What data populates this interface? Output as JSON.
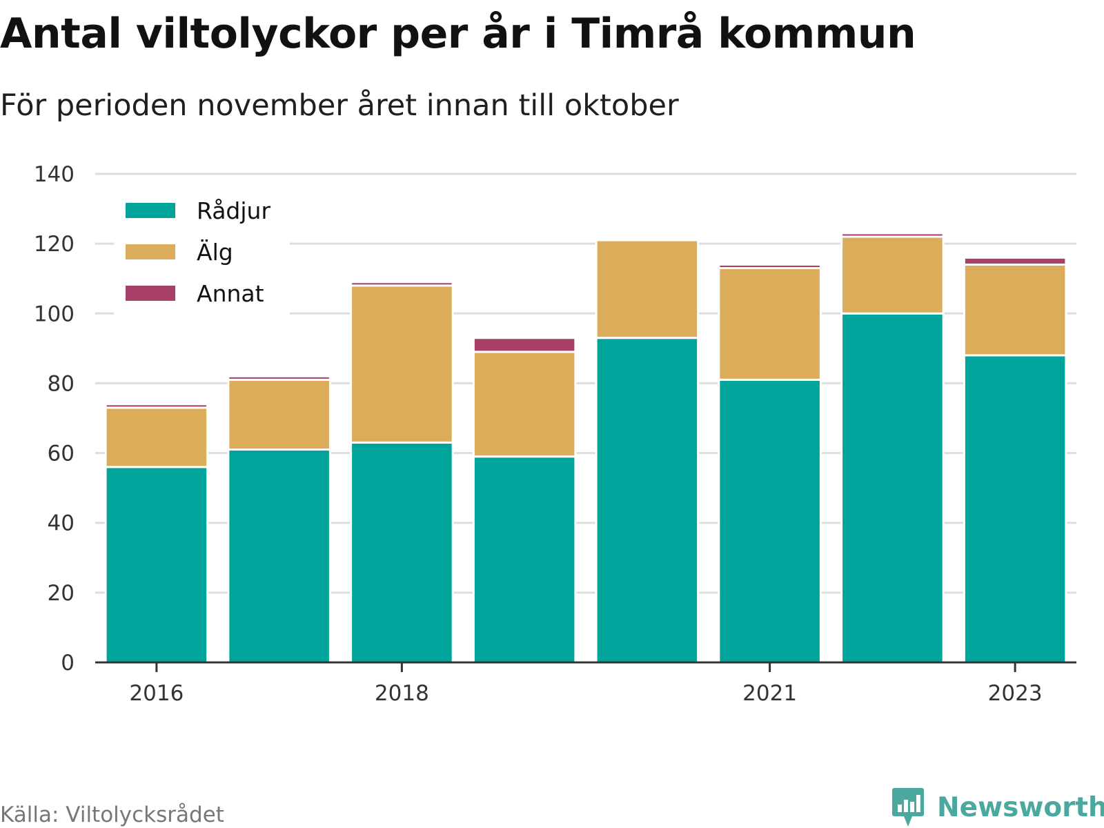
{
  "title": "Antal viltolyckor per år i Timrå kommun",
  "subtitle": "För perioden november året innan till oktober",
  "source": "Källa: Viltolycksrådet",
  "brand": {
    "name": "Newsworthy",
    "icon": "bar-chart-speech-bubble-icon",
    "color": "#4ba89f"
  },
  "chart_data": {
    "type": "bar",
    "stacked": true,
    "title": "Antal viltolyckor per år i Timrå kommun",
    "subtitle": "För perioden november året innan till oktober",
    "categories": [
      "2016",
      "2017",
      "2018",
      "2019",
      "2020",
      "2021",
      "2022",
      "2023"
    ],
    "x_tick_labels": [
      "2016",
      "",
      "2018",
      "",
      "",
      "2021",
      "",
      "2023"
    ],
    "series": [
      {
        "name": "Rådjur",
        "color": "#00a49a",
        "values": [
          56,
          61,
          63,
          59,
          93,
          81,
          100,
          88
        ]
      },
      {
        "name": "Älg",
        "color": "#dbac5a",
        "values": [
          17,
          20,
          45,
          30,
          28,
          32,
          22,
          26
        ]
      },
      {
        "name": "Annat",
        "color": "#a93f69",
        "values": [
          1,
          1,
          1,
          4,
          0,
          1,
          1,
          2
        ]
      }
    ],
    "ylim": [
      0,
      140
    ],
    "yticks": [
      0,
      20,
      40,
      60,
      80,
      100,
      120,
      140
    ],
    "grid": true,
    "legend": "top-left"
  }
}
